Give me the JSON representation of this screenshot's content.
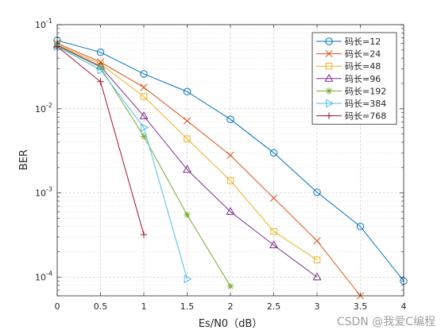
{
  "chart_data": {
    "type": "line",
    "title": "",
    "xlabel": "Es/N0（dB）",
    "ylabel": "BER",
    "xlim": [
      0,
      4
    ],
    "ylim": [
      6e-05,
      0.1
    ],
    "yscale": "log",
    "grid": true,
    "legend_position": "top-right",
    "xticks": [
      "0",
      "0.5",
      "1",
      "1.5",
      "2",
      "2.5",
      "3",
      "3.5",
      "4"
    ],
    "yticks": [
      {
        "base": "10",
        "exp": "-1",
        "value": 0.1
      },
      {
        "base": "10",
        "exp": "-2",
        "value": 0.01
      },
      {
        "base": "10",
        "exp": "-3",
        "value": 0.001
      },
      {
        "base": "10",
        "exp": "-4",
        "value": 0.0001
      }
    ],
    "series": [
      {
        "name": "码长=12",
        "color": "#0072BD",
        "marker": "circle",
        "x": [
          0,
          0.5,
          1,
          1.5,
          2,
          2.5,
          3,
          3.5,
          4
        ],
        "y": [
          0.065,
          0.047,
          0.026,
          0.016,
          0.0075,
          0.003,
          0.00102,
          0.0004,
          9e-05
        ]
      },
      {
        "name": "码长=24",
        "color": "#D95319",
        "marker": "x",
        "x": [
          0,
          0.5,
          1,
          1.5,
          2,
          2.5,
          3,
          3.5
        ],
        "y": [
          0.06,
          0.036,
          0.018,
          0.0072,
          0.0028,
          0.00087,
          0.00027,
          6e-05
        ]
      },
      {
        "name": "码长=48",
        "color": "#EDB120",
        "marker": "square",
        "x": [
          0,
          0.5,
          1,
          1.5,
          2,
          2.5,
          3
        ],
        "y": [
          0.058,
          0.034,
          0.014,
          0.0044,
          0.0014,
          0.00035,
          0.00016
        ]
      },
      {
        "name": "码长=96",
        "color": "#7E2F8E",
        "marker": "triangle-up",
        "x": [
          0,
          0.5,
          1,
          1.5,
          2,
          2.5,
          3
        ],
        "y": [
          0.057,
          0.032,
          0.0082,
          0.0019,
          0.0006,
          0.00024,
          0.0001
        ]
      },
      {
        "name": "码长=192",
        "color": "#77AC30",
        "marker": "asterisk",
        "x": [
          0,
          0.5,
          1,
          1.5,
          2
        ],
        "y": [
          0.056,
          0.031,
          0.0047,
          0.00055,
          7.8e-05
        ]
      },
      {
        "name": "码长=384",
        "color": "#4DBEEE",
        "marker": "triangle-right",
        "x": [
          0,
          0.5,
          1,
          1.5
        ],
        "y": [
          0.055,
          0.029,
          0.006,
          9.5e-05
        ]
      },
      {
        "name": "码长=768",
        "color": "#A2142F",
        "marker": "plus",
        "x": [
          0,
          0.5,
          1
        ],
        "y": [
          0.055,
          0.021,
          0.00032
        ]
      }
    ]
  },
  "watermark": "CSDN @我爱C编程"
}
